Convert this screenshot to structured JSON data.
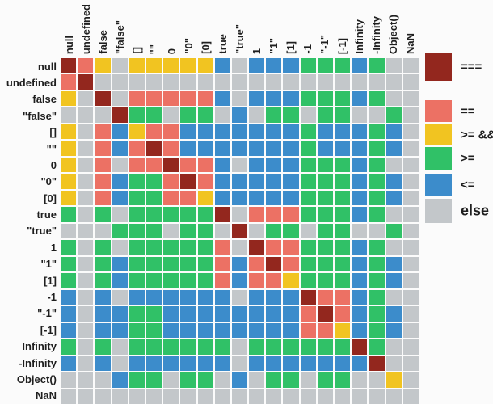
{
  "chart_data": {
    "type": "heatmap",
    "description": "JavaScript comparison table: color of cell (row,col) shows which comparison operators evaluate to true for the pair of values",
    "x_categories": [
      "null",
      "undefined",
      "false",
      "\"false\"",
      "[]",
      "\"\"",
      "0",
      "\"0\"",
      "[0]",
      "true",
      "\"true\"",
      "1",
      "\"1\"",
      "[1]",
      "-1",
      "\"-1\"",
      "[-1]",
      "Infinity",
      "-Infinity",
      "Object()",
      "NaN"
    ],
    "y_categories": [
      "null",
      "undefined",
      "false",
      "\"false\"",
      "[]",
      "\"\"",
      "0",
      "\"0\"",
      "[0]",
      "true",
      "\"true\"",
      "1",
      "\"1\"",
      "[1]",
      "-1",
      "\"-1\"",
      "[-1]",
      "Infinity",
      "-Infinity",
      "Object()",
      "NaN"
    ],
    "legend": [
      {
        "code": "D",
        "label": "===",
        "color": "#93271E"
      },
      {
        "code": "S",
        "label": "==",
        "color": "#EC7164"
      },
      {
        "code": "Y",
        "label": ">= && <=",
        "color": "#F1C421"
      },
      {
        "code": "G",
        "label": ">=",
        "color": "#30C167"
      },
      {
        "code": "B",
        "label": "<=",
        "color": "#3C8CCB"
      },
      {
        "code": "E",
        "label": "else",
        "color": "#C3C7CA"
      }
    ],
    "matrix": [
      "DSYEYYYYYBEBBBGGGBGEE",
      "SDEEEEEEEEEEEEEEEEEEE",
      "YEDESSSSSBEBBBGGGBGEE",
      "EEEDGGEGGEBEGGEGGEEGE",
      "YESBYSSBBBBBBBGBBBGBE",
      "YESBSDSBBBBBBBGBBBGBE",
      "YESESSDSSBEBBBGGGBGEE",
      "YESBGGSDSBBBBBGGGBGBE",
      "YESBGGSSYBBBBBGGGBGBE",
      "GEGEGGGGGDESSSGGGBGEE",
      "EEEGGGEGGEDEGGEGGEEGE",
      "GEGEGGGGGSEDSSGGGBGEE",
      "GEGBGGGGGSBSDSGGGBGBE",
      "GEGBGGGGGSBSSYGGGBGBE",
      "BEBEBBBBBBEBBBDSSBGEE",
      "BEBBGGBBBBBBBBSDSBGBE",
      "BEBBGGBBBBBBBBSSYBGBE",
      "GEGEGGGGGGEGGGGGGDGEE",
      "BEBEBBBBBBEBBBBBBBDEE",
      "EEEBGGEGGEBEGGEGGEEYE",
      "EEEEEEEEEEEEEEEEEEEEE"
    ]
  }
}
